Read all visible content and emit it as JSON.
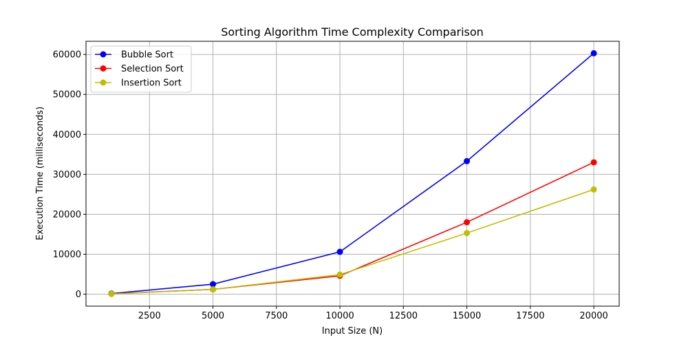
{
  "chart_data": {
    "type": "line",
    "title": "Sorting Algorithm Time Complexity Comparison",
    "xlabel": "Input Size (N)",
    "ylabel": "Execution Time (milliseconds)",
    "x": [
      1000,
      5000,
      10000,
      15000,
      20000
    ],
    "series": [
      {
        "name": "Bubble Sort",
        "color": "#0000ff",
        "values": [
          150,
          2500,
          10600,
          33300,
          60300
        ]
      },
      {
        "name": "Selection Sort",
        "color": "#ff0000",
        "values": [
          100,
          1200,
          4600,
          18000,
          33000
        ]
      },
      {
        "name": "Insertion Sort",
        "color": "#bfbf00",
        "values": [
          50,
          1200,
          4900,
          15300,
          26200
        ]
      }
    ],
    "xlim": [
      0,
      21000
    ],
    "ylim": [
      -3000,
      63300
    ],
    "xticks": [
      2500,
      5000,
      7500,
      10000,
      12500,
      15000,
      17500,
      20000
    ],
    "xtick_labels": [
      "2500",
      "5000",
      "7500",
      "10000",
      "12500",
      "15000",
      "17500",
      "20000"
    ],
    "yticks": [
      0,
      10000,
      20000,
      30000,
      40000,
      50000,
      60000
    ],
    "ytick_labels": [
      "0",
      "10000",
      "20000",
      "30000",
      "40000",
      "50000",
      "60000"
    ],
    "grid": true,
    "legend_position": "top-left",
    "marker": "circle"
  }
}
